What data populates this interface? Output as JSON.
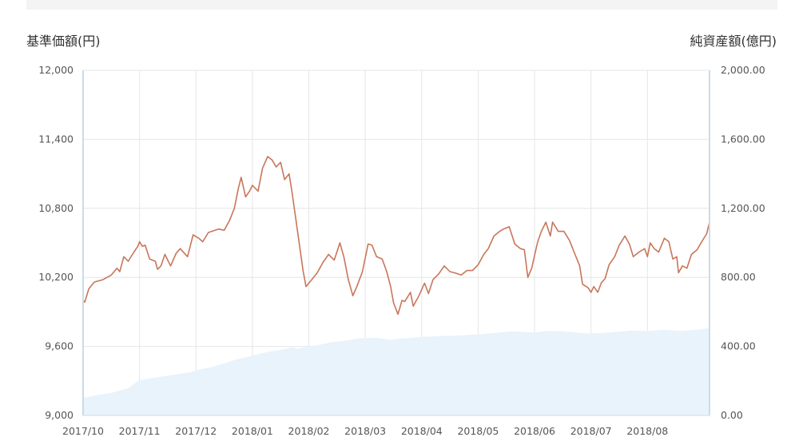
{
  "chart_data": {
    "type": "line",
    "title": "",
    "left_axis_title": "基準価額(円)",
    "right_axis_title": "純資産額(億円)",
    "ylim": [
      9000,
      12000
    ],
    "y2lim": [
      0,
      2000
    ],
    "yticks": [
      "12,000",
      "11,400",
      "10,800",
      "10,200",
      "9,600",
      "9,000"
    ],
    "y2ticks": [
      "2,000.00",
      "1,600.00",
      "1,200.00",
      "800.00",
      "400.00",
      "0.00"
    ],
    "xticks": [
      "2017/10",
      "2017/11",
      "2017/12",
      "2018/01",
      "2018/02",
      "2018/03",
      "2018/04",
      "2018/05",
      "2018/06",
      "2018/07",
      "2018/08"
    ],
    "grid": true,
    "colors": {
      "nav_line": "#c8765a",
      "assets_fill": "#e8f3fb",
      "grid": "#e6e6e6",
      "axis_line": "#c9dcea"
    },
    "series": [
      {
        "name": "基準価額",
        "axis": "left",
        "style": "line",
        "points": [
          [
            0.0,
            10000
          ],
          [
            0.03,
            9985
          ],
          [
            0.1,
            10100
          ],
          [
            0.2,
            10160
          ],
          [
            0.35,
            10180
          ],
          [
            0.5,
            10220
          ],
          [
            0.6,
            10280
          ],
          [
            0.65,
            10250
          ],
          [
            0.72,
            10380
          ],
          [
            0.8,
            10340
          ],
          [
            0.9,
            10420
          ],
          [
            0.97,
            10470
          ],
          [
            1.0,
            10510
          ],
          [
            1.05,
            10470
          ],
          [
            1.1,
            10480
          ],
          [
            1.18,
            10360
          ],
          [
            1.28,
            10340
          ],
          [
            1.32,
            10270
          ],
          [
            1.38,
            10300
          ],
          [
            1.45,
            10400
          ],
          [
            1.55,
            10300
          ],
          [
            1.65,
            10410
          ],
          [
            1.72,
            10450
          ],
          [
            1.85,
            10380
          ],
          [
            1.95,
            10570
          ],
          [
            2.05,
            10540
          ],
          [
            2.12,
            10510
          ],
          [
            2.22,
            10590
          ],
          [
            2.4,
            10620
          ],
          [
            2.5,
            10610
          ],
          [
            2.6,
            10700
          ],
          [
            2.68,
            10800
          ],
          [
            2.75,
            10970
          ],
          [
            2.8,
            11070
          ],
          [
            2.88,
            10900
          ],
          [
            2.95,
            10950
          ],
          [
            3.0,
            11000
          ],
          [
            3.1,
            10950
          ],
          [
            3.18,
            11150
          ],
          [
            3.27,
            11250
          ],
          [
            3.35,
            11220
          ],
          [
            3.42,
            11160
          ],
          [
            3.5,
            11200
          ],
          [
            3.57,
            11050
          ],
          [
            3.65,
            11100
          ],
          [
            3.7,
            10950
          ],
          [
            3.8,
            10600
          ],
          [
            3.9,
            10250
          ],
          [
            3.95,
            10120
          ],
          [
            4.05,
            10180
          ],
          [
            4.15,
            10240
          ],
          [
            4.25,
            10330
          ],
          [
            4.35,
            10400
          ],
          [
            4.45,
            10350
          ],
          [
            4.55,
            10500
          ],
          [
            4.62,
            10380
          ],
          [
            4.7,
            10180
          ],
          [
            4.78,
            10040
          ],
          [
            4.85,
            10120
          ],
          [
            4.95,
            10250
          ],
          [
            5.05,
            10490
          ],
          [
            5.12,
            10480
          ],
          [
            5.2,
            10380
          ],
          [
            5.3,
            10360
          ],
          [
            5.38,
            10250
          ],
          [
            5.45,
            10120
          ],
          [
            5.5,
            9980
          ],
          [
            5.58,
            9880
          ],
          [
            5.65,
            10000
          ],
          [
            5.7,
            9990
          ],
          [
            5.8,
            10070
          ],
          [
            5.85,
            9950
          ],
          [
            5.95,
            10040
          ],
          [
            6.05,
            10150
          ],
          [
            6.12,
            10060
          ],
          [
            6.2,
            10180
          ],
          [
            6.3,
            10230
          ],
          [
            6.4,
            10300
          ],
          [
            6.5,
            10250
          ],
          [
            6.58,
            10240
          ],
          [
            6.7,
            10220
          ],
          [
            6.8,
            10260
          ],
          [
            6.9,
            10260
          ],
          [
            7.0,
            10310
          ],
          [
            7.1,
            10400
          ],
          [
            7.18,
            10450
          ],
          [
            7.28,
            10560
          ],
          [
            7.38,
            10600
          ],
          [
            7.45,
            10620
          ],
          [
            7.55,
            10640
          ],
          [
            7.65,
            10490
          ],
          [
            7.75,
            10450
          ],
          [
            7.82,
            10440
          ],
          [
            7.88,
            10200
          ],
          [
            7.95,
            10280
          ],
          [
            8.05,
            10500
          ],
          [
            8.12,
            10600
          ],
          [
            8.2,
            10680
          ],
          [
            8.28,
            10560
          ],
          [
            8.32,
            10680
          ],
          [
            8.42,
            10600
          ],
          [
            8.52,
            10600
          ],
          [
            8.62,
            10520
          ],
          [
            8.7,
            10420
          ],
          [
            8.8,
            10300
          ],
          [
            8.85,
            10140
          ],
          [
            8.95,
            10110
          ],
          [
            9.0,
            10070
          ],
          [
            9.05,
            10120
          ],
          [
            9.12,
            10070
          ],
          [
            9.18,
            10150
          ],
          [
            9.25,
            10190
          ],
          [
            9.32,
            10310
          ],
          [
            9.42,
            10380
          ],
          [
            9.5,
            10480
          ],
          [
            9.6,
            10560
          ],
          [
            9.68,
            10490
          ],
          [
            9.75,
            10380
          ],
          [
            9.85,
            10420
          ],
          [
            9.95,
            10450
          ],
          [
            10.0,
            10380
          ],
          [
            10.05,
            10500
          ],
          [
            10.12,
            10450
          ],
          [
            10.2,
            10420
          ],
          [
            10.3,
            10540
          ],
          [
            10.38,
            10510
          ],
          [
            10.45,
            10360
          ],
          [
            10.52,
            10380
          ],
          [
            10.55,
            10240
          ],
          [
            10.62,
            10300
          ],
          [
            10.7,
            10280
          ],
          [
            10.78,
            10400
          ],
          [
            10.88,
            10440
          ],
          [
            10.95,
            10500
          ],
          [
            11.05,
            10580
          ],
          [
            11.1,
            10680
          ]
        ]
      },
      {
        "name": "純資産額",
        "axis": "right",
        "style": "area",
        "points": [
          [
            0.0,
            100
          ],
          [
            0.2,
            115
          ],
          [
            0.5,
            130
          ],
          [
            0.8,
            158
          ],
          [
            1.0,
            205
          ],
          [
            1.2,
            215
          ],
          [
            1.5,
            230
          ],
          [
            1.9,
            250
          ],
          [
            2.05,
            265
          ],
          [
            2.3,
            282
          ],
          [
            2.7,
            322
          ],
          [
            2.9,
            338
          ],
          [
            3.1,
            355
          ],
          [
            3.3,
            370
          ],
          [
            3.5,
            380
          ],
          [
            3.7,
            395
          ],
          [
            3.8,
            385
          ],
          [
            4.0,
            400
          ],
          [
            4.2,
            410
          ],
          [
            4.4,
            425
          ],
          [
            4.6,
            430
          ],
          [
            4.85,
            445
          ],
          [
            5.0,
            448
          ],
          [
            5.2,
            450
          ],
          [
            5.45,
            438
          ],
          [
            5.6,
            445
          ],
          [
            5.85,
            450
          ],
          [
            6.0,
            455
          ],
          [
            6.3,
            460
          ],
          [
            6.6,
            462
          ],
          [
            7.0,
            470
          ],
          [
            7.3,
            478
          ],
          [
            7.6,
            488
          ],
          [
            8.0,
            480
          ],
          [
            8.2,
            490
          ],
          [
            8.5,
            488
          ],
          [
            8.8,
            478
          ],
          [
            9.0,
            475
          ],
          [
            9.2,
            478
          ],
          [
            9.5,
            485
          ],
          [
            9.7,
            492
          ],
          [
            10.0,
            490
          ],
          [
            10.3,
            496
          ],
          [
            10.6,
            490
          ],
          [
            10.85,
            496
          ],
          [
            11.1,
            505
          ]
        ]
      }
    ]
  }
}
